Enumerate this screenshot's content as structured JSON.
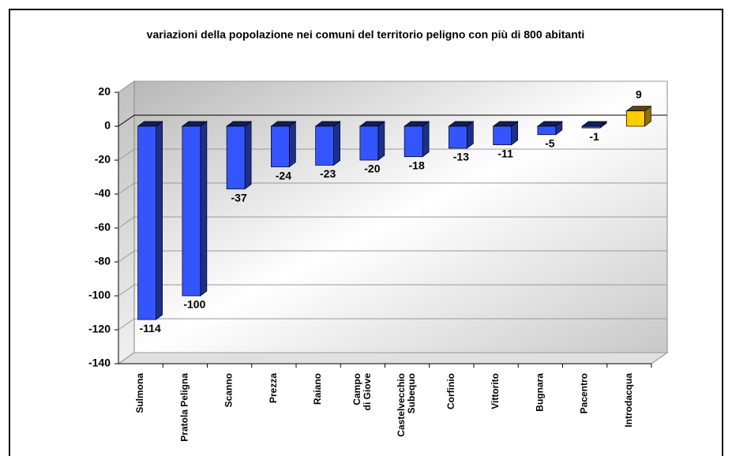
{
  "chart_data": {
    "type": "bar3d",
    "title": "variazioni della popolazione nei comuni del territorio peligno con più di 800 abitanti",
    "categories": [
      "Sulmona",
      "Pratola Peligna",
      "Scanno",
      "Prezza",
      "Raiano",
      "Campo\ndi Giove",
      "Castelvecchio\nSubequo",
      "Corfinio",
      "Vittorito",
      "Bugnara",
      "Pacentro",
      "Introdacqua"
    ],
    "values": [
      -114,
      -100,
      -37,
      -24,
      -23,
      -20,
      -18,
      -13,
      -11,
      -5,
      -1,
      9
    ],
    "colors": [
      "#3355ff",
      "#3355ff",
      "#3355ff",
      "#3355ff",
      "#3355ff",
      "#3355ff",
      "#3355ff",
      "#3355ff",
      "#3355ff",
      "#3355ff",
      "#3355ff",
      "#ffcc00"
    ],
    "ylim": [
      -140,
      20
    ],
    "yticks": [
      -140,
      -120,
      -100,
      -80,
      -60,
      -40,
      -20,
      0,
      20
    ],
    "grid": true
  }
}
